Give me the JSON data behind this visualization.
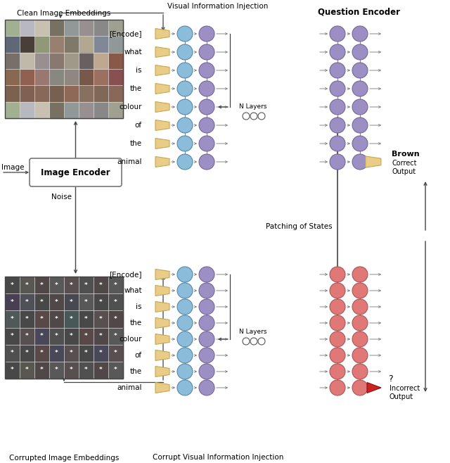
{
  "bg_color": "#ffffff",
  "purple_node": "#9b8fc4",
  "blue_node": "#8bbcda",
  "red_node": "#e07878",
  "red_node_light": "#e8a0a0",
  "gold_color": "#e8cc88",
  "gold_edge": "#c8a850",
  "question_encoder_label": "Question Encoder",
  "image_encoder_label": "Image Encoder",
  "clean_label": "Clean Image Embeddings",
  "corrupted_label": "Corrupted Image Embeddings",
  "vis_inject_label": "Visual Information Injection",
  "corrupt_inject_label": "Corrupt Visual Information Injection",
  "patching_label": "Patching of States",
  "n_layers_label": "N Layers",
  "brown_label": "Brown",
  "correct_label": "Correct\nOutput",
  "incorrect_label": "Incorrect\nOutput",
  "noise_label": "Noise",
  "image_label": "Image",
  "token_labels": [
    "[Encode]",
    "what",
    "is",
    "the",
    "colour",
    "of",
    "the",
    "animal"
  ]
}
